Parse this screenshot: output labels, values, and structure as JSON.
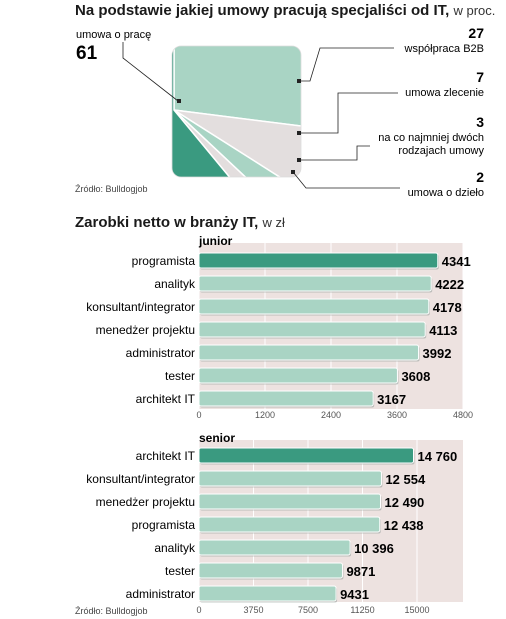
{
  "header": {
    "title": "Na podstawie jakiej umowy pracują specjaliści od IT,",
    "title_unit": "w proc.",
    "source": "Źródło: Bulldogjob"
  },
  "section2": {
    "title": "Zarobki netto w branży IT,",
    "title_unit": "w zł",
    "source": "Źródło: Bulldogjob"
  },
  "colors": {
    "accent": "#3a9a80",
    "light": "#a9d4c4",
    "grey": "#e3dede",
    "panel": "#ede2e0",
    "leader": "#222222"
  },
  "chart_data": [
    {
      "type": "pie",
      "categories": [
        "umowa o pracę",
        "współpraca B2B",
        "umowa zlecenie",
        "na co najmniej dwóch rodzajach umowy",
        "umowa o dzieło"
      ],
      "values": [
        61,
        27,
        7,
        3,
        2
      ],
      "value_labels": [
        "61",
        "27",
        "7",
        "3",
        "2"
      ]
    },
    {
      "type": "bar",
      "title": "junior",
      "categories": [
        "programista",
        "analityk",
        "konsultant/integrator",
        "menedżer projektu",
        "administrator",
        "tester",
        "architekt IT"
      ],
      "values": [
        4341,
        4222,
        4178,
        4113,
        3992,
        3608,
        3167
      ],
      "value_labels": [
        "4341",
        "4222",
        "4178",
        "4113",
        "3992",
        "3608",
        "3167"
      ],
      "xlim": [
        0,
        4800
      ],
      "ticks": [
        "0",
        "1200",
        "2400",
        "3600",
        "4800"
      ]
    },
    {
      "type": "bar",
      "title": "senior",
      "categories": [
        "architekt IT",
        "konsultant/integrator",
        "menedżer projektu",
        "programista",
        "analityk",
        "tester",
        "administrator"
      ],
      "values": [
        14760,
        12554,
        12490,
        12438,
        10396,
        9871,
        9431
      ],
      "value_labels": [
        "14 760",
        "12 554",
        "12 490",
        "12 438",
        "10 396",
        "9871",
        "9431"
      ],
      "xlim": [
        0,
        15000
      ],
      "ticks": [
        "0",
        "3750",
        "7500",
        "11250",
        "15000"
      ]
    }
  ]
}
